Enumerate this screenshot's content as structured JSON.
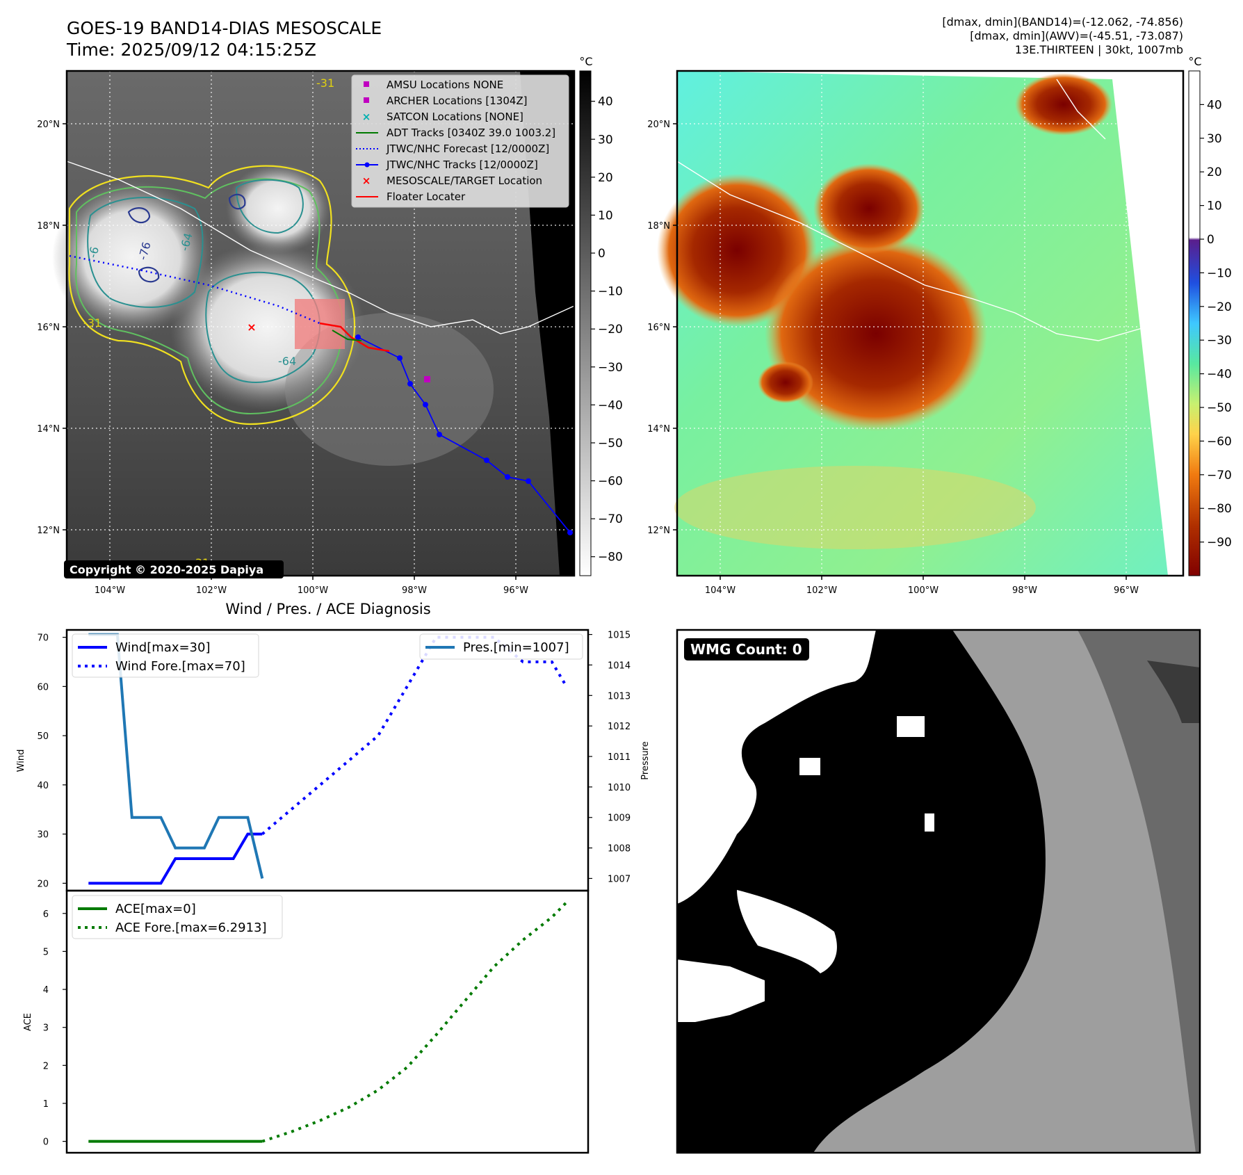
{
  "header": {
    "title": "GOES-19 BAND14-DIAS MESOSCALE",
    "time": "Time: 2025/09/12 04:15:25Z",
    "info_lines": [
      "[dmax, dmin](BAND14)=(-12.062, -74.856)",
      "[dmax, dmin](AWV)=(-45.51, -73.087)",
      "13E.THIRTEEN | 30kt, 1007mb"
    ]
  },
  "ir_map": {
    "lat_ticks": [
      "20°N",
      "18°N",
      "16°N",
      "14°N",
      "12°N"
    ],
    "lon_ticks": [
      "104°W",
      "102°W",
      "100°W",
      "98°W",
      "96°W"
    ],
    "colorbar_unit": "°C",
    "colorbar_ticks": [
      "40",
      "30",
      "20",
      "10",
      "0",
      "−10",
      "−20",
      "−30",
      "−40",
      "−50",
      "−60",
      "−70",
      "−80"
    ],
    "contour_labels": [
      "-31",
      "-64",
      "-76",
      "-6",
      "-64",
      "-31",
      "-31"
    ],
    "copyright": "Copyright © 2020-2025 Dapiya",
    "legend": [
      {
        "label": "AMSU Locations NONE",
        "marker": "square",
        "color": "#c000c0"
      },
      {
        "label": "ARCHER Locations [1304Z]",
        "marker": "square",
        "color": "#c000c0"
      },
      {
        "label": "SATCON Locations [NONE]",
        "marker": "x",
        "color": "#00b0b0"
      },
      {
        "label": "ADT Tracks [0340Z 39.0 1003.2]",
        "marker": "line",
        "color": "#007a00"
      },
      {
        "label": "JTWC/NHC Forecast [12/0000Z]",
        "marker": "dotted",
        "color": "#0000ff"
      },
      {
        "label": "JTWC/NHC Tracks [12/0000Z]",
        "marker": "line-dot",
        "color": "#0000ff"
      },
      {
        "label": "MESOSCALE/TARGET Location",
        "marker": "x",
        "color": "#ff0000"
      },
      {
        "label": "Floater Locater",
        "marker": "line",
        "color": "#ff0000"
      }
    ]
  },
  "awv_map": {
    "lat_ticks": [
      "20°N",
      "18°N",
      "16°N",
      "14°N",
      "12°N"
    ],
    "lon_ticks": [
      "104°W",
      "102°W",
      "100°W",
      "98°W",
      "96°W"
    ],
    "colorbar_unit": "°C",
    "colorbar_ticks": [
      "40",
      "30",
      "20",
      "10",
      "0",
      "−10",
      "−20",
      "−30",
      "−40",
      "−50",
      "−60",
      "−70",
      "−80",
      "−90"
    ]
  },
  "wmg": {
    "label": "WMG Count: 0"
  },
  "chart_data": [
    {
      "type": "line",
      "title": "Wind / Pres. / ACE Diagnosis",
      "x": [
        0,
        1,
        2,
        3,
        4,
        5,
        6,
        7,
        8,
        9,
        10,
        11,
        12,
        13,
        14,
        15,
        16,
        17,
        18,
        19,
        20,
        21,
        22,
        23,
        24,
        25,
        26,
        27,
        28,
        29,
        30,
        31,
        32,
        33
      ],
      "ylabel": "Wind",
      "ylim": [
        18.5,
        71.5
      ],
      "yticks": [
        "20",
        "30",
        "40",
        "50",
        "60",
        "70"
      ],
      "y2label": "Pressure",
      "y2lim": [
        1006.6,
        1015.15
      ],
      "y2ticks": [
        "1007",
        "1008",
        "1009",
        "1010",
        "1011",
        "1012",
        "1013",
        "1014",
        "1015"
      ],
      "series": [
        {
          "name": "Wind[max=30]",
          "axis": "left",
          "color": "#0000ff",
          "dash": "solid",
          "points": [
            [
              0,
              20
            ],
            [
              1,
              20
            ],
            [
              2,
              20
            ],
            [
              3,
              20
            ],
            [
              4,
              20
            ],
            [
              5,
              20
            ],
            [
              6,
              25
            ],
            [
              7,
              25
            ],
            [
              8,
              25
            ],
            [
              9,
              25
            ],
            [
              10,
              25
            ],
            [
              11,
              30
            ],
            [
              12,
              30
            ]
          ]
        },
        {
          "name": "Wind Fore.[max=70]",
          "axis": "left",
          "color": "#0000ff",
          "dash": "dotted",
          "points": [
            [
              12,
              30
            ],
            [
              14,
              35
            ],
            [
              16,
              40
            ],
            [
              18,
              45
            ],
            [
              20,
              50
            ],
            [
              22,
              60
            ],
            [
              24,
              70
            ],
            [
              26,
              70
            ],
            [
              28,
              70
            ],
            [
              30,
              65
            ],
            [
              32,
              65
            ],
            [
              33,
              60
            ]
          ]
        },
        {
          "name": "Pres.[min=1007]",
          "axis": "right",
          "color": "#1f77b4",
          "dash": "solid",
          "points": [
            [
              0,
              1015
            ],
            [
              1,
              1015
            ],
            [
              2,
              1015
            ],
            [
              3,
              1009
            ],
            [
              4,
              1009
            ],
            [
              5,
              1009
            ],
            [
              6,
              1008
            ],
            [
              7,
              1008
            ],
            [
              8,
              1008
            ],
            [
              9,
              1009
            ],
            [
              10,
              1009
            ],
            [
              11,
              1009
            ],
            [
              12,
              1007
            ]
          ]
        }
      ]
    },
    {
      "type": "line",
      "x": [
        0,
        1,
        2,
        3,
        4,
        5,
        6,
        7,
        8,
        9,
        10,
        11,
        12,
        13,
        14,
        15,
        16,
        17,
        18,
        19,
        20,
        21,
        22,
        23,
        24,
        25,
        26,
        27,
        28,
        29,
        30,
        31,
        32,
        33
      ],
      "ylabel": "ACE",
      "ylim": [
        -0.3,
        6.6
      ],
      "yticks": [
        "0",
        "1",
        "2",
        "3",
        "4",
        "5",
        "6"
      ],
      "series": [
        {
          "name": "ACE[max=0]",
          "color": "#007a00",
          "dash": "solid",
          "points": [
            [
              0,
              0
            ],
            [
              12,
              0
            ]
          ]
        },
        {
          "name": "ACE Fore.[max=6.2913]",
          "color": "#007a00",
          "dash": "dotted",
          "points": [
            [
              12,
              0
            ],
            [
              14,
              0.25
            ],
            [
              16,
              0.55
            ],
            [
              18,
              0.9
            ],
            [
              20,
              1.35
            ],
            [
              22,
              1.95
            ],
            [
              24,
              2.8
            ],
            [
              26,
              3.7
            ],
            [
              28,
              4.6
            ],
            [
              30,
              5.3
            ],
            [
              32,
              5.9
            ],
            [
              33,
              6.29
            ]
          ]
        }
      ]
    }
  ]
}
